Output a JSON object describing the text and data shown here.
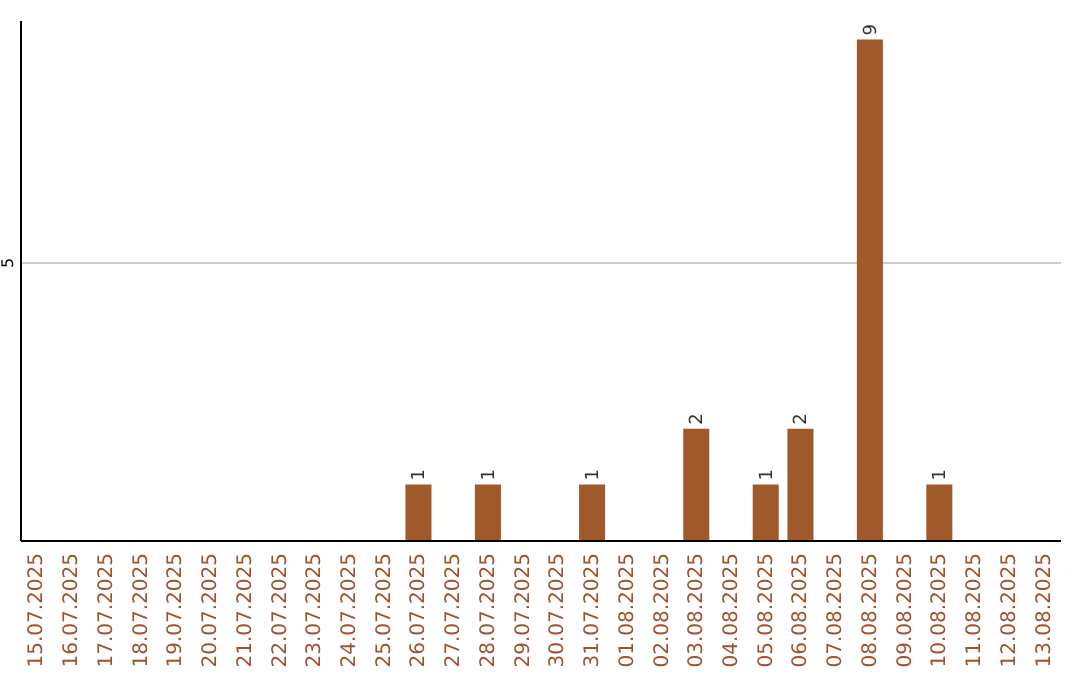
{
  "chart_data": {
    "type": "bar",
    "categories": [
      "15.07.2025",
      "16.07.2025",
      "17.07.2025",
      "18.07.2025",
      "19.07.2025",
      "20.07.2025",
      "21.07.2025",
      "22.07.2025",
      "23.07.2025",
      "24.07.2025",
      "25.07.2025",
      "26.07.2025",
      "27.07.2025",
      "28.07.2025",
      "29.07.2025",
      "30.07.2025",
      "31.07.2025",
      "01.08.2025",
      "02.08.2025",
      "03.08.2025",
      "04.08.2025",
      "05.08.2025",
      "06.08.2025",
      "07.08.2025",
      "08.08.2025",
      "09.08.2025",
      "10.08.2025",
      "11.08.2025",
      "12.08.2025",
      "13.08.2025"
    ],
    "values": [
      0,
      0,
      0,
      0,
      0,
      0,
      0,
      0,
      0,
      0,
      0,
      1,
      0,
      1,
      0,
      0,
      1,
      0,
      0,
      2,
      0,
      1,
      2,
      0,
      9,
      0,
      1,
      0,
      0,
      0
    ],
    "value_labels": [
      null,
      null,
      null,
      null,
      null,
      null,
      null,
      null,
      null,
      null,
      null,
      "1",
      null,
      "1",
      null,
      null,
      "1",
      null,
      null,
      "2",
      null,
      "1",
      "2",
      null,
      "9",
      null,
      "1",
      null,
      null,
      null
    ],
    "color": "#a0592a",
    "ylim": [
      0,
      9.35
    ],
    "yticks": [
      5
    ],
    "grid": "y"
  }
}
